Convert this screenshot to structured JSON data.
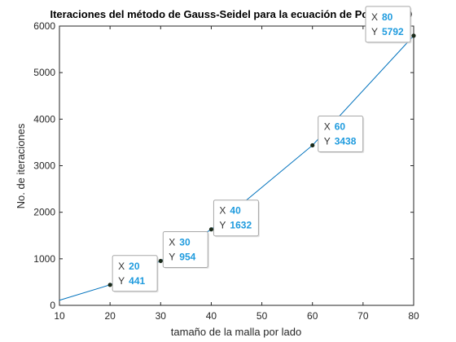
{
  "chart_data": {
    "type": "line",
    "title": "Iteraciones del método de Gauss-Seidel para la ecuación de Poisson 2D",
    "xlabel": "tamaño de la malla por lado",
    "ylabel": "No. de iteraciones",
    "xlim": [
      10,
      80
    ],
    "ylim": [
      0,
      6000
    ],
    "xticks": [
      10,
      20,
      30,
      40,
      50,
      60,
      70,
      80
    ],
    "yticks": [
      0,
      1000,
      2000,
      3000,
      4000,
      5000,
      6000
    ],
    "grid": false,
    "series": [
      {
        "color": "#0072bd",
        "x": [
          10,
          20,
          30,
          40,
          60,
          80
        ],
        "y": [
          110,
          441,
          954,
          1632,
          3438,
          5792
        ]
      }
    ],
    "datatips": [
      {
        "x": 20,
        "y": 441
      },
      {
        "x": 30,
        "y": 954
      },
      {
        "x": 40,
        "y": 1632
      },
      {
        "x": 60,
        "y": 3438
      },
      {
        "x": 80,
        "y": 5792
      }
    ],
    "datatip_keys": {
      "x": "X",
      "y": "Y"
    },
    "colors": {
      "line": "#0072bd",
      "marker": "#1a2a1a",
      "datatip_value": "#1f9bde",
      "axis": "#262626"
    }
  }
}
